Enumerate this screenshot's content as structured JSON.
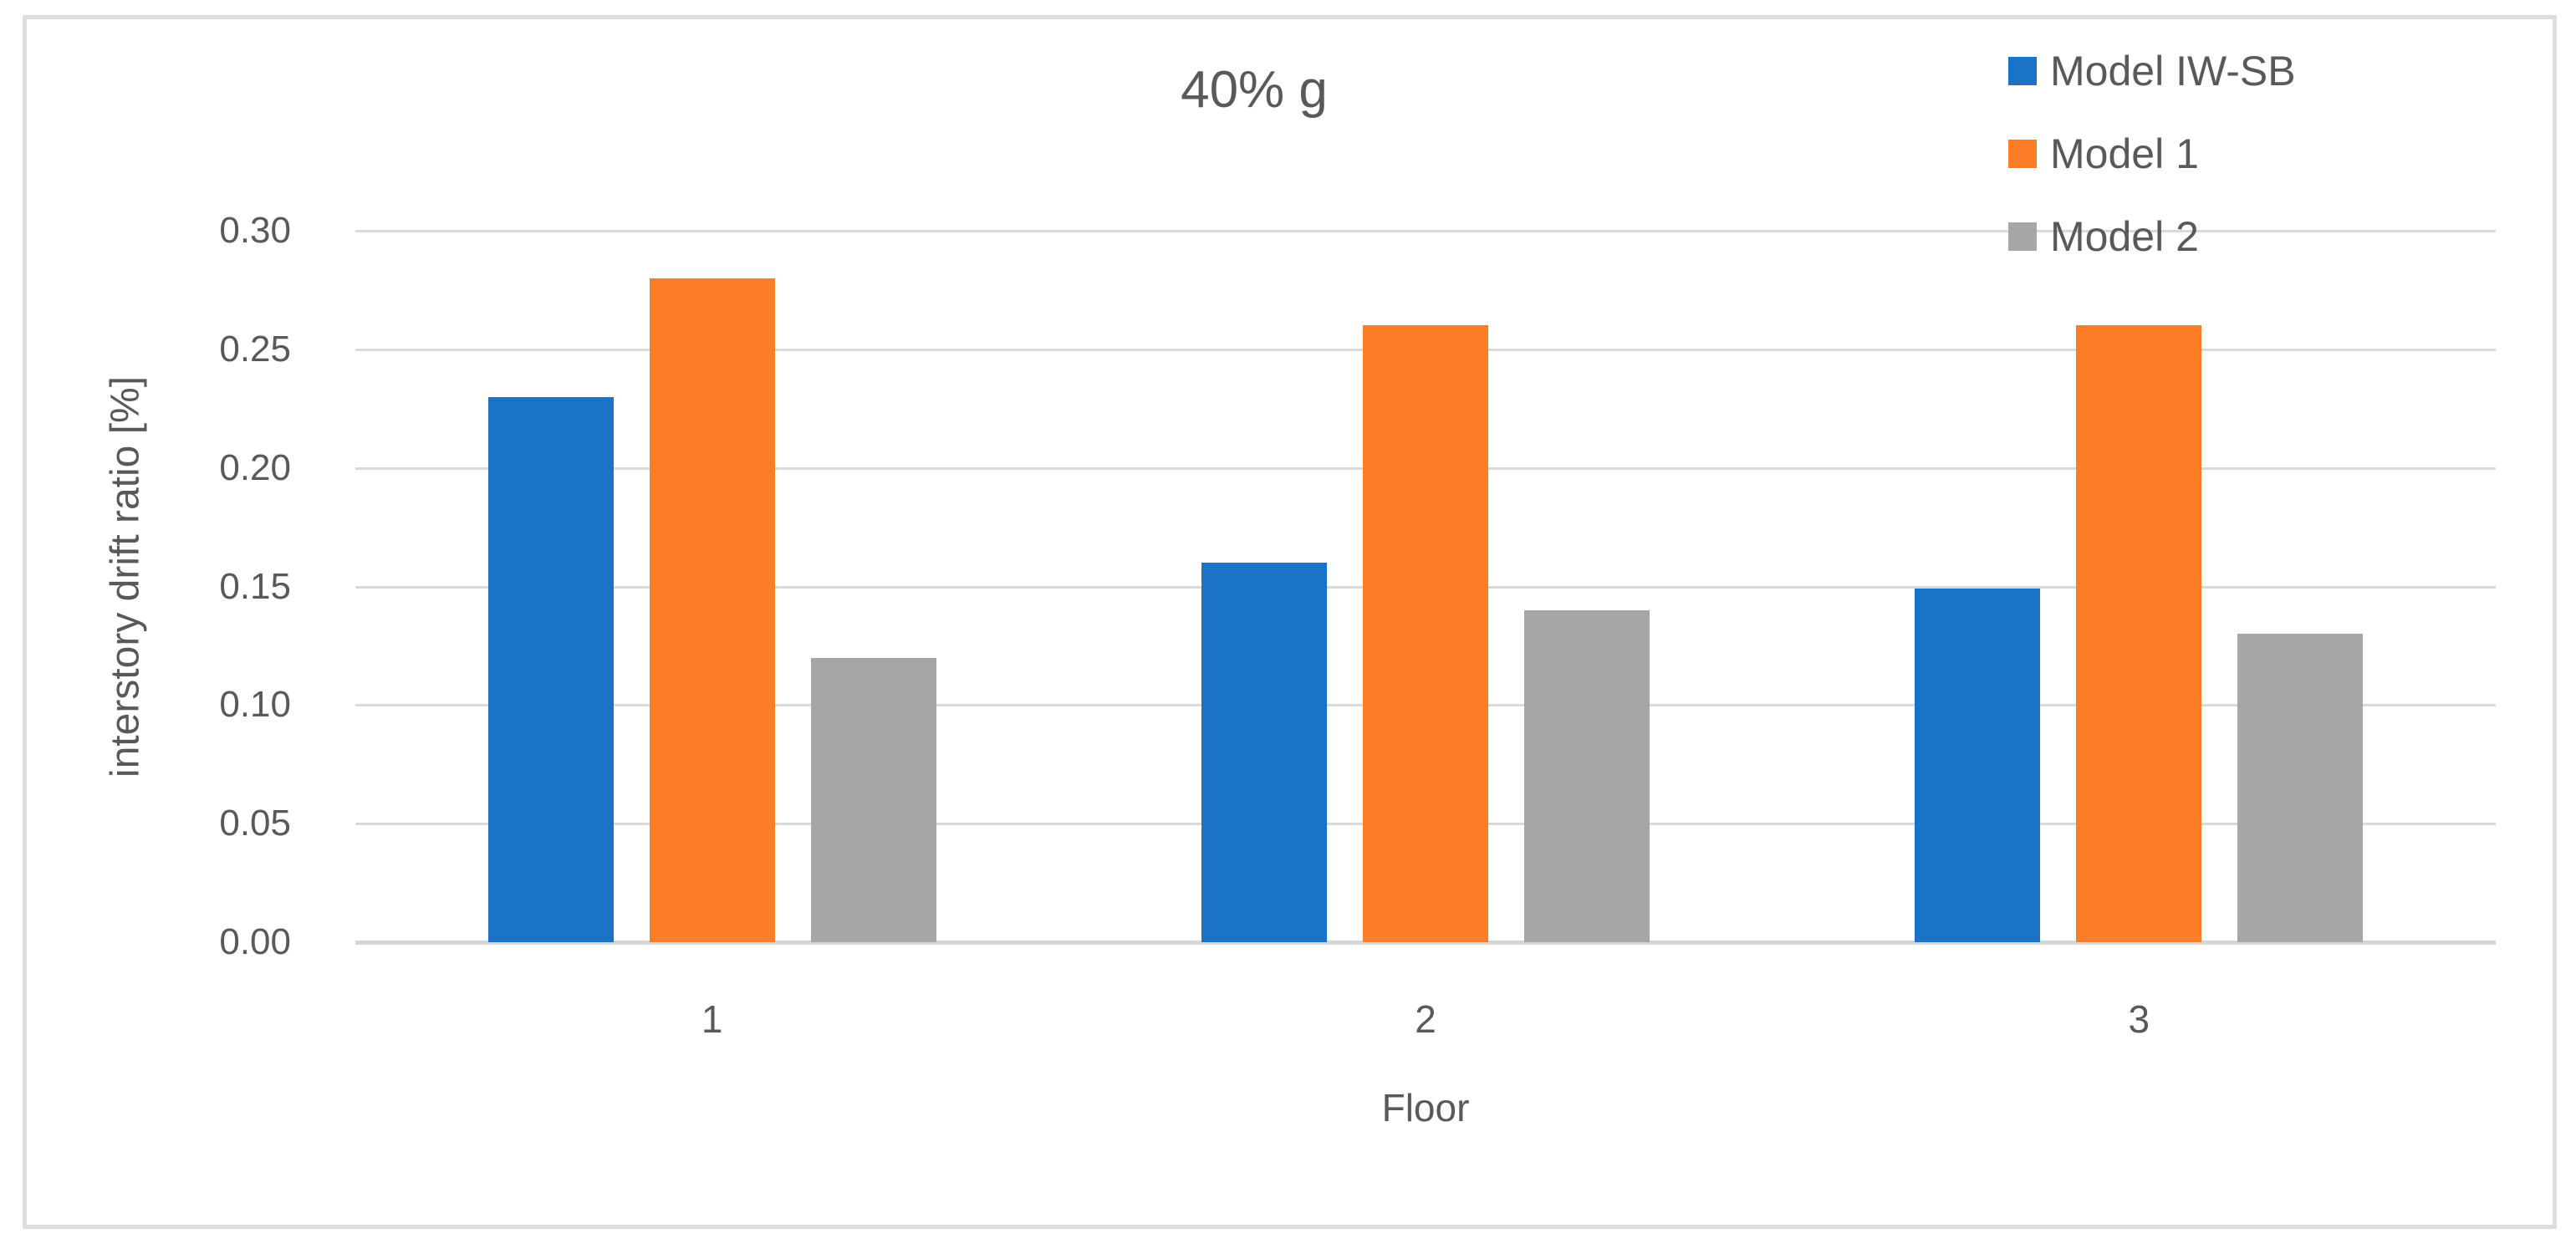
{
  "chart_data": {
    "type": "bar",
    "title": "40% g",
    "xlabel": "Floor",
    "ylabel": "interstory drift ratio [%]",
    "categories": [
      "1",
      "2",
      "3"
    ],
    "series": [
      {
        "name": "Model IW-SB",
        "color": "#1B73C8",
        "values": [
          0.23,
          0.16,
          0.149
        ]
      },
      {
        "name": "Model 1",
        "color": "#FB7E26",
        "values": [
          0.28,
          0.26,
          0.26
        ]
      },
      {
        "name": "Model 2",
        "color": "#A6A6A6",
        "values": [
          0.12,
          0.14,
          0.13
        ]
      }
    ],
    "ylim": [
      0,
      0.3
    ],
    "yticks": {
      "values": [
        0,
        0.05,
        0.1,
        0.15,
        0.2,
        0.25,
        0.3
      ],
      "labels": [
        "0.00",
        "0.05",
        "0.10",
        "0.15",
        "0.20",
        "0.25",
        "0.30"
      ]
    },
    "grid": true,
    "legend_position": "top-right",
    "colors": {
      "text": "#595959",
      "gridline": "#D9D9D9",
      "frame_border": "#DEDEDE",
      "background": "#FFFFFF"
    }
  }
}
